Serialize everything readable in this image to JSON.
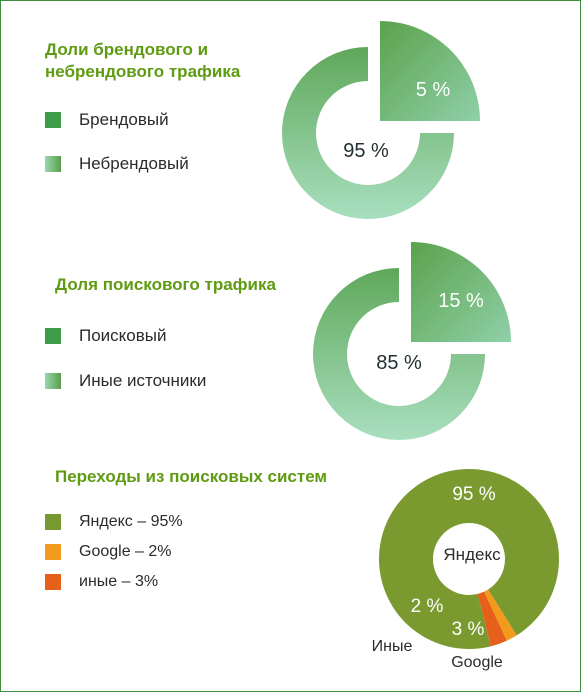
{
  "colors": {
    "frame": "#3c8f3c",
    "title": "#5f9b12",
    "dark_green": "#5a9e4a",
    "light_green": "#9ad6b0",
    "yandex": "#7a9a30",
    "google": "#f29a1c",
    "other": "#e5601a"
  },
  "chart_data": [
    {
      "type": "pie",
      "title": "Доли брендового и небрендового трафика",
      "legend": [
        "Брендовый",
        "Небрендовый"
      ],
      "slices": [
        {
          "label": "Брендовый",
          "value": 5,
          "text": "5 %"
        },
        {
          "label": "Небрендовый",
          "value": 95,
          "text": "95 %"
        }
      ]
    },
    {
      "type": "pie",
      "title": "Доля поискового трафика",
      "legend": [
        "Поисковый",
        "Иные источники"
      ],
      "slices": [
        {
          "label": "Поисковый",
          "value": 15,
          "text": "15 %"
        },
        {
          "label": "Иные источники",
          "value": 85,
          "text": "85 %"
        }
      ]
    },
    {
      "type": "pie",
      "title": "Переходы из поисковых систем",
      "legend": [
        "Яндекс – 95%",
        "Google – 2%",
        "иные – 3%"
      ],
      "center_label": "Яндекс",
      "slices": [
        {
          "label": "Яндекс",
          "value": 95,
          "text": "95 %"
        },
        {
          "label": "Google",
          "value": 2,
          "text": "2 %"
        },
        {
          "label": "Иные",
          "value": 3,
          "text": "3 %"
        }
      ],
      "outer_labels": [
        "Иные",
        "Google"
      ]
    }
  ]
}
